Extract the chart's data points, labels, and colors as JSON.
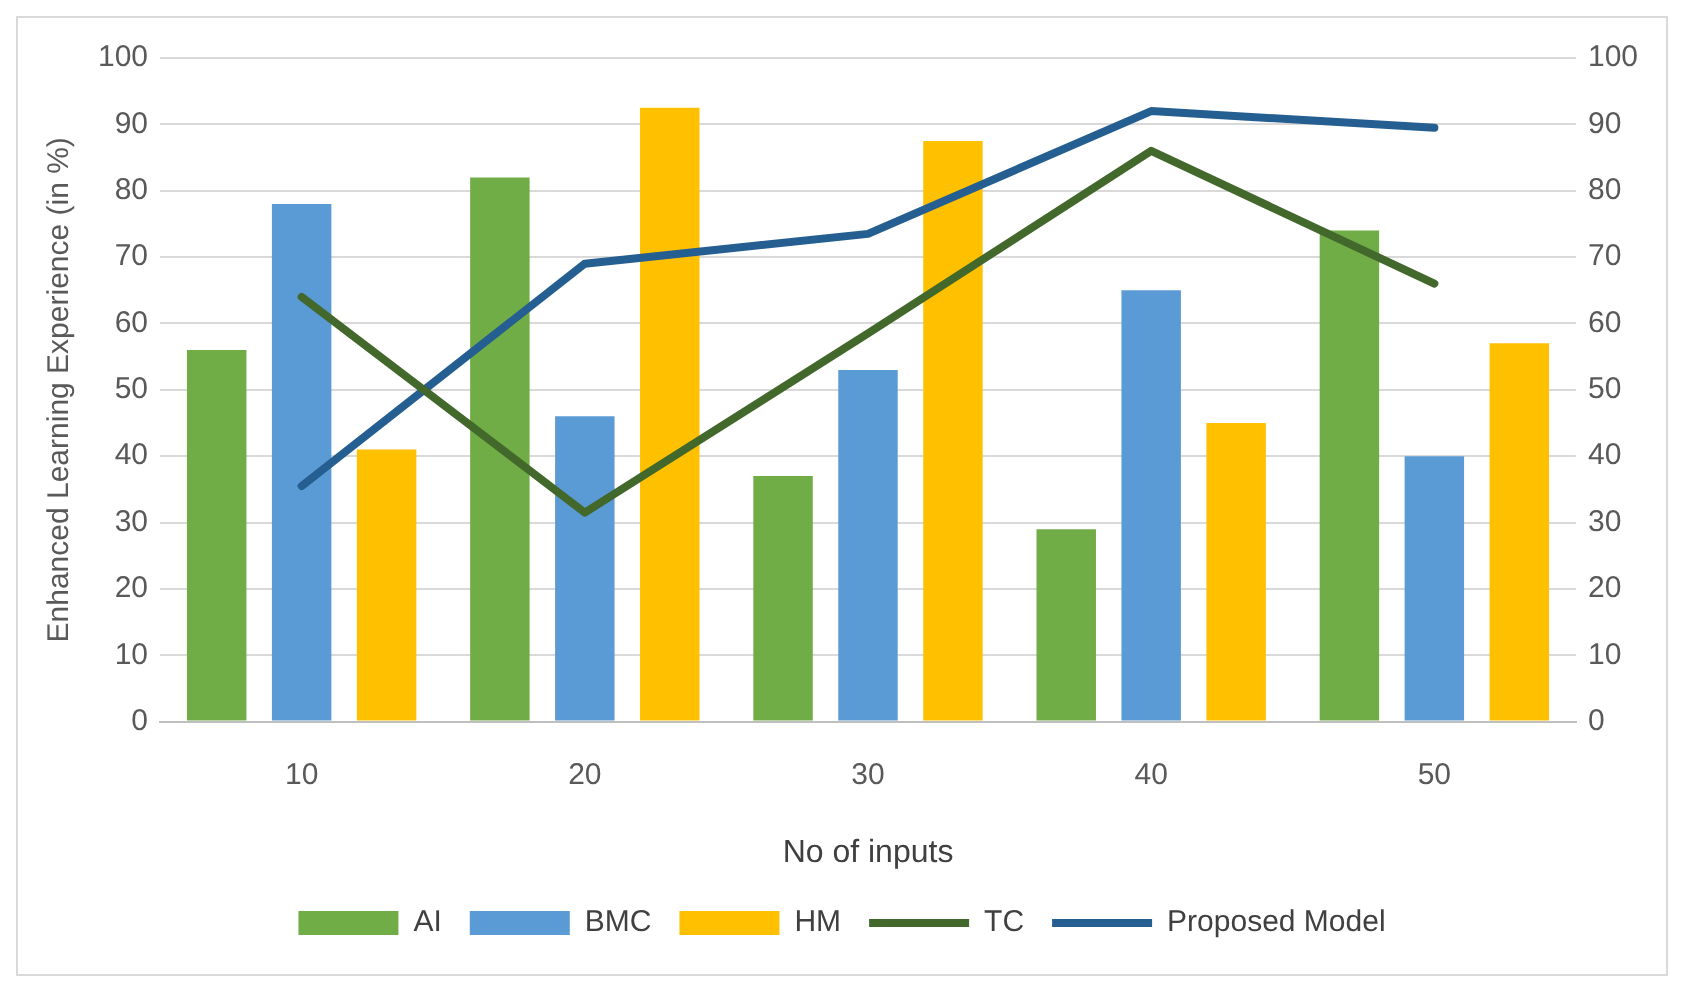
{
  "chart_data": {
    "type": "bar",
    "xlabel": "No of inputs",
    "ylabel": "Enhanced Learning Experience (in %)",
    "categories": [
      "10",
      "20",
      "30",
      "40",
      "50"
    ],
    "series": [
      {
        "name": "AI",
        "color": "#70ad47",
        "values": [
          56,
          82,
          37,
          29,
          74
        ]
      },
      {
        "name": "BMC",
        "color": "#5b9bd5",
        "values": [
          78,
          46,
          53,
          65,
          40
        ]
      },
      {
        "name": "HM",
        "color": "#ffc000",
        "values": [
          41,
          92.5,
          87.5,
          45,
          57
        ]
      },
      {
        "name": "TC",
        "type": "line",
        "color": "#43682b",
        "values": [
          64,
          31.5,
          58.5,
          86,
          66
        ]
      },
      {
        "name": "Proposed Model",
        "type": "line",
        "color": "#255e91",
        "values": [
          35.5,
          69,
          73.5,
          92,
          89.5
        ]
      }
    ],
    "ylim": [
      0,
      100
    ],
    "yticks": [
      0,
      10,
      20,
      30,
      40,
      50,
      60,
      70,
      80,
      90,
      100
    ],
    "y2lim": [
      0,
      100
    ],
    "y2ticks": [
      0,
      10,
      20,
      30,
      40,
      50,
      60,
      70,
      80,
      90,
      100
    ],
    "grid": "y",
    "legend": "bottom",
    "marker": "none"
  }
}
